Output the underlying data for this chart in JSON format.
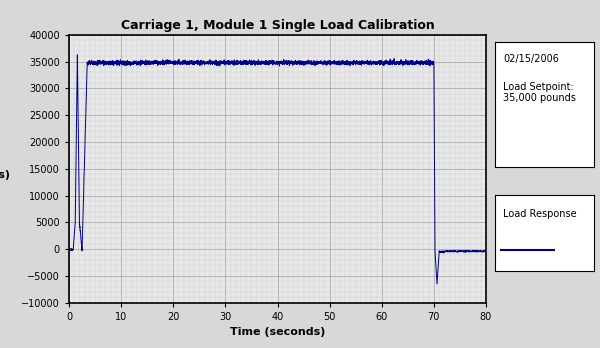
{
  "title": "Carriage 1, Module 1 Single Load Calibration",
  "xlabel": "Time (seconds)",
  "ylabel": "Load\n(pounds)",
  "xlim": [
    0,
    80
  ],
  "ylim": [
    -10000,
    40000
  ],
  "xticks": [
    0,
    10,
    20,
    30,
    40,
    50,
    60,
    70,
    80
  ],
  "yticks": [
    -10000,
    -5000,
    0,
    5000,
    10000,
    15000,
    20000,
    25000,
    30000,
    35000,
    40000
  ],
  "line_color": "#00008B",
  "date_text": "02/15/2006",
  "setpoint_text": "Load Setpoint:\n35,000 pounds",
  "legend_label": "Load Response",
  "fig_facecolor": "#d8d8d8",
  "plot_facecolor": "#e8e8e8",
  "grid_color": "#aaaaaa",
  "grid_minor_color": "#cccccc",
  "title_fontsize": 9,
  "label_fontsize": 8,
  "tick_fontsize": 7,
  "annotation_fontsize": 7
}
